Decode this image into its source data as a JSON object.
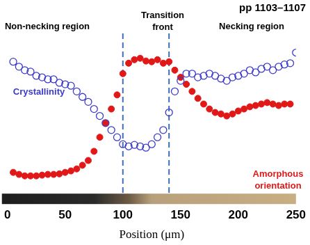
{
  "chart_data": {
    "type": "scatter",
    "title": "pp 1103–1107",
    "x_label": "Position (μm)",
    "annotations": [
      "Non-necking region",
      "Transition front",
      "Necking region"
    ],
    "xlim": [
      0,
      250
    ],
    "xticks": [
      0,
      50,
      100,
      150,
      200,
      250
    ],
    "ylim": [
      0,
      100
    ],
    "grid": false,
    "tick_labels": "x",
    "vlines": [
      100,
      140
    ],
    "series": [
      {
        "name": "Crystallinity",
        "color": "#3a3acc",
        "marker": "open_circle",
        "line_style": "none",
        "x": [
          5,
          10,
          15,
          20,
          25,
          30,
          35,
          40,
          45,
          50,
          55,
          60,
          65,
          70,
          75,
          80,
          85,
          90,
          95,
          100,
          105,
          110,
          115,
          120,
          125,
          130,
          135,
          140,
          145,
          150,
          155,
          160,
          165,
          170,
          175,
          180,
          185,
          190,
          195,
          200,
          205,
          210,
          215,
          220,
          225,
          230,
          235,
          240,
          245,
          250
        ],
        "values": [
          77.7,
          75,
          73.1,
          72.3,
          70,
          69.2,
          68.1,
          68.1,
          66.2,
          65.4,
          64.6,
          61.5,
          58.5,
          55.8,
          51.9,
          48.1,
          44.2,
          40.4,
          36.5,
          32.7,
          31.5,
          32.3,
          31.5,
          30.8,
          32.7,
          36.5,
          40.4,
          50,
          61.5,
          67.3,
          71.2,
          71.2,
          69.2,
          70,
          71.2,
          70,
          68.5,
          67.3,
          69.2,
          70,
          71.2,
          73.1,
          71.9,
          73.8,
          75,
          73.1,
          75,
          76.2,
          76.9,
          82.7
        ]
      },
      {
        "name": "Amorphous orientation",
        "color": "#e01818",
        "marker": "circle",
        "line_style": "none",
        "x": [
          5,
          10,
          15,
          20,
          25,
          30,
          35,
          40,
          45,
          50,
          55,
          60,
          65,
          70,
          75,
          80,
          85,
          90,
          95,
          100,
          105,
          110,
          115,
          120,
          125,
          130,
          135,
          140,
          145,
          150,
          155,
          160,
          165,
          170,
          175,
          180,
          185,
          190,
          195,
          200,
          205,
          210,
          215,
          220,
          225,
          230,
          235,
          240,
          245
        ],
        "values": [
          17.3,
          16.2,
          15.4,
          15.4,
          15.4,
          15.8,
          16.2,
          16.2,
          16.5,
          17.3,
          18.1,
          19.2,
          21.2,
          23.8,
          28.8,
          36.5,
          44.2,
          51.9,
          59.6,
          71.2,
          76.9,
          78.8,
          79.6,
          78.1,
          77.7,
          78.8,
          76.9,
          77.7,
          73.1,
          69.2,
          65.4,
          61.5,
          57.7,
          54.6,
          51.9,
          50,
          49.2,
          48.1,
          49.2,
          50.8,
          51.9,
          53.1,
          53.8,
          54.6,
          55.4,
          54.6,
          53.8,
          54.6,
          54.6
        ]
      }
    ]
  }
}
